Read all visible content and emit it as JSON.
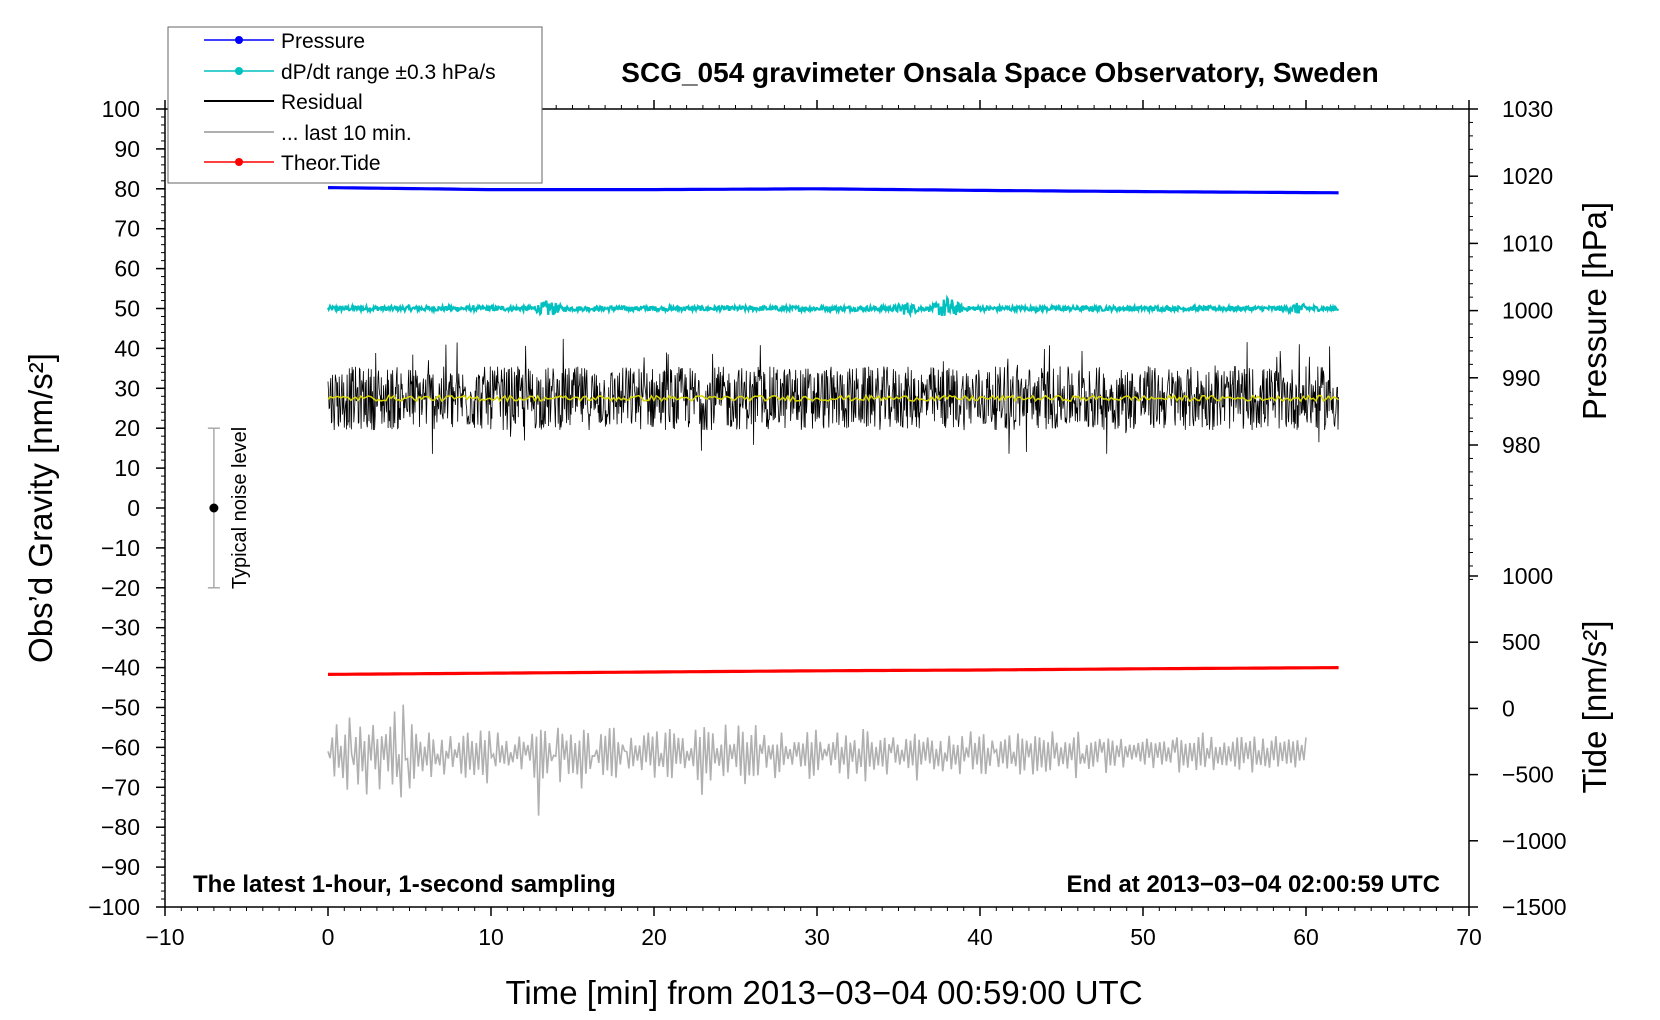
{
  "chart_data": {
    "type": "line",
    "title": "SCG_054 gravimeter Onsala Space Observatory, Sweden",
    "xlabel": "Time [min] from 2013−03−04 00:59:00 UTC",
    "ylabel_left": "Obs’d Gravity [nm/s²]",
    "ylabel_pressure": "Pressure [hPa]",
    "ylabel_tide": "Tide [nm/s²]",
    "xlim": [
      -10,
      70
    ],
    "ylim_left": [
      -100,
      100
    ],
    "ylim_pressure": [
      960,
      1030
    ],
    "ylim_tide": [
      -1500,
      1000
    ],
    "x_ticks": [
      "−10",
      "0",
      "10",
      "20",
      "30",
      "40",
      "50",
      "60",
      "70"
    ],
    "x_tick_values": [
      -10,
      0,
      10,
      20,
      30,
      40,
      50,
      60,
      70
    ],
    "y_left_ticks": [
      "100",
      "90",
      "80",
      "70",
      "60",
      "50",
      "40",
      "30",
      "20",
      "10",
      "0",
      "−10",
      "−20",
      "−30",
      "−40",
      "−50",
      "−60",
      "−70",
      "−80",
      "−90",
      "−100"
    ],
    "y_left_tick_values": [
      100,
      90,
      80,
      70,
      60,
      50,
      40,
      30,
      20,
      10,
      0,
      -10,
      -20,
      -30,
      -40,
      -50,
      -60,
      -70,
      -80,
      -90,
      -100
    ],
    "pressure_ticks": [
      "1030",
      "1020",
      "1010",
      "1000",
      "990",
      "980"
    ],
    "pressure_tick_values": [
      1030,
      1020,
      1010,
      1000,
      990,
      980
    ],
    "tide_ticks": [
      "1000",
      "500",
      "0",
      "−500",
      "−1000",
      "−1500"
    ],
    "tide_tick_values": [
      1000,
      500,
      0,
      -500,
      -1000,
      -1500
    ],
    "annotation_left": "The latest 1-hour, 1-second sampling",
    "annotation_right": "End at 2013−03−04 02:00:59 UTC",
    "noise_label": "Typical noise level",
    "noise_bar": {
      "x": -7,
      "center": 0,
      "low": -20,
      "high": 20
    },
    "legend": [
      {
        "label": "Pressure",
        "color": "#0000ff",
        "marker": true
      },
      {
        "label": "dP/dt range ±0.3 hPa/s",
        "color": "#00c0c0",
        "marker": true
      },
      {
        "label": "Residual",
        "color": "#000000",
        "marker": false
      },
      {
        "label": "... last 10 min.",
        "color": "#b0b0b0",
        "marker": false
      },
      {
        "label": "Theor.Tide",
        "color": "#ff0000",
        "marker": true
      }
    ],
    "series": [
      {
        "name": "Pressure",
        "axis": "left",
        "color": "#0000ff",
        "x": [
          0,
          10,
          20,
          30,
          40,
          50,
          62
        ],
        "values": [
          80.3,
          79.8,
          79.8,
          80.0,
          79.6,
          79.3,
          79.0
        ]
      },
      {
        "name": "dP/dt range ±0.3 hPa/s",
        "axis": "left",
        "color": "#00c0c0",
        "x": [
          0,
          62
        ],
        "values": [
          50.0,
          50.0
        ],
        "scatter": 0.6,
        "bursts": [
          {
            "x": 13.5,
            "amp": 2.2
          },
          {
            "x": 35.5,
            "amp": 1.8
          },
          {
            "x": 38.0,
            "amp": 3.0
          },
          {
            "x": 59.5,
            "amp": 1.5
          }
        ]
      },
      {
        "name": "Residual",
        "axis": "left",
        "color": "#000000",
        "x": [
          0,
          62
        ],
        "values": [
          27.5,
          27.5
        ],
        "noise_amplitude": 8,
        "noise_extremes": [
          12,
          42
        ]
      },
      {
        "name": "Residual smoothed",
        "axis": "left",
        "color": "#d8d800",
        "x": [
          0,
          62
        ],
        "values": [
          27.5,
          27.5
        ]
      },
      {
        "name": "... last 10 min.",
        "axis": "left",
        "color": "#b0b0b0",
        "x_start": 0,
        "x_end": 60,
        "values": [
          -61.0,
          -62.7,
          -57.5,
          -67.3,
          -54.2,
          -65.1,
          -59.6,
          -67.7,
          -56.8,
          -70.6,
          -52.5,
          -61.6,
          -64.4,
          -57.4,
          -69.3,
          -54.8,
          -66.0,
          -58.4,
          -71.8,
          -56.8,
          -63.3,
          -54.4,
          -65.5,
          -57.9,
          -70.5,
          -57.2,
          -63.1,
          -56.7,
          -66.0,
          -54.8,
          -69.3,
          -51.0,
          -67.4,
          -61.7,
          -72.5,
          -49.3,
          -63.1,
          -62.8,
          -70.3,
          -54.2,
          -67.9,
          -56.6,
          -64.8,
          -58.6,
          -66.0,
          -59.8,
          -64.5,
          -56.3,
          -67.4,
          -58.0,
          -64.2,
          -61.6,
          -64.5,
          -58.1,
          -66.8,
          -60.9,
          -62.8,
          -57.2,
          -64.9,
          -60.5,
          -62.6,
          -58.8,
          -66.6,
          -57.1,
          -67.6,
          -56.3,
          -65.6,
          -58.4,
          -66.9,
          -58.9,
          -65.6,
          -55.8,
          -66.9,
          -58.2,
          -69.0,
          -55.9,
          -62.5,
          -61.7,
          -64.7,
          -56.3,
          -63.8,
          -59.5,
          -64.1,
          -58.4,
          -64.5,
          -61.2,
          -63.7,
          -59.3,
          -62.9,
          -57.3,
          -65.5,
          -58.6,
          -62.0,
          -59.4,
          -63.3,
          -56.6,
          -67.6,
          -57.3,
          -77.1,
          -55.6,
          -67.8,
          -55.9,
          -66.5,
          -58.9,
          -63.4,
          -62.0,
          -62.2,
          -55.1,
          -68.7,
          -56.6,
          -63.1,
          -58.3,
          -66.7,
          -56.8,
          -66.4,
          -58.9,
          -66.8,
          -58.3,
          -70.3,
          -55.6,
          -66.6,
          -56.4,
          -65.4,
          -62.1,
          -62.2,
          -60.6,
          -63.9,
          -56.7,
          -66.9,
          -57.1,
          -65.8,
          -55.2,
          -67.2,
          -55.1,
          -67.6,
          -58.7,
          -64.3,
          -59.3,
          -60.9,
          -61.1,
          -65.3,
          -57.6,
          -64.7,
          -59.5,
          -63.3,
          -59.5,
          -65.7,
          -57.0,
          -63.7,
          -56.3,
          -64.5,
          -57.3,
          -67.6,
          -56.0,
          -64.7,
          -61.4,
          -64.9,
          -56.3,
          -67.4,
          -55.4,
          -67.7,
          -56.5,
          -64.1,
          -57.6,
          -64.1,
          -57.7,
          -65.2,
          -60.9,
          -63.3,
          -60.2,
          -64.7,
          -55.6,
          -68.2,
          -57.4,
          -71.9,
          -54.9,
          -66.5,
          -56.2,
          -68.3,
          -56.5,
          -64.0,
          -60.2,
          -64.6,
          -59.3,
          -67.2,
          -54.3,
          -66.3,
          -59.3,
          -62.9,
          -59.1,
          -64.9,
          -54.5,
          -67.1,
          -56.1,
          -69.2,
          -58.7,
          -67.0,
          -56.9,
          -67.2,
          -54.4,
          -67.0,
          -59.3,
          -61.6,
          -56.9,
          -65.1,
          -59.5,
          -63.0,
          -59.3,
          -67.7,
          -59.3,
          -66.2,
          -56.3,
          -64.4,
          -59.7,
          -62.9,
          -60.4,
          -64.3,
          -58.7,
          -62.3,
          -58.7,
          -64.8,
          -59.0,
          -64.6,
          -56.2,
          -67.9,
          -58.7,
          -67.1,
          -55.6,
          -65.7,
          -58.6,
          -63.2,
          -60.4,
          -62.2,
          -59.1,
          -64.5,
          -58.7,
          -63.1,
          -56.3,
          -66.5,
          -59.9,
          -64.3,
          -57.0,
          -67.9,
          -58.8,
          -63.6,
          -58.2,
          -66.6,
          -60.3,
          -64.9,
          -55.4,
          -68.5,
          -56.0,
          -64.8,
          -58.7,
          -65.6,
          -59.9,
          -64.5,
          -58.2,
          -64.8,
          -57.6,
          -66.8,
          -59.2,
          -61.4,
          -57.5,
          -63.8,
          -59.3,
          -64.3,
          -60.6,
          -63.5,
          -57.9,
          -65.2,
          -58.3,
          -64.5,
          -56.6,
          -68.3,
          -58.1,
          -64.3,
          -58.6,
          -63.3,
          -57.5,
          -64.0,
          -58.3,
          -65.5,
          -60.4,
          -64.7,
          -58.4,
          -66.0,
          -61.3,
          -63.5,
          -57.1,
          -65.5,
          -59.3,
          -64.3,
          -59.4,
          -66.7,
          -57.2,
          -63.5,
          -60.0,
          -62.5,
          -56.0,
          -65.5,
          -58.9,
          -64.3,
          -57.3,
          -66.6,
          -56.7,
          -66.7,
          -60.1,
          -64.6,
          -58.3,
          -61.3,
          -60.6,
          -64.9,
          -58.5,
          -64.0,
          -58.0,
          -65.3,
          -57.0,
          -64.1,
          -61.1,
          -64.7,
          -56.5,
          -66.8,
          -57.8,
          -65.8,
          -58.3,
          -62.5,
          -59.0,
          -66.8,
          -57.2,
          -65.9,
          -57.5,
          -65.0,
          -58.2,
          -66.1,
          -58.7,
          -65.7,
          -56.0,
          -62.8,
          -58.8,
          -64.7,
          -60.0,
          -64.2,
          -58.7,
          -65.3,
          -59.0,
          -63.2,
          -57.5,
          -67.7,
          -56.1,
          -64.1,
          -61.5,
          -64.0,
          -59.4,
          -65.4,
          -58.8,
          -64.8,
          -58.5,
          -63.7,
          -57.9,
          -61.3,
          -58.7,
          -66.4,
          -57.8,
          -64.5,
          -58.3,
          -64.6,
          -59.5,
          -62.4,
          -57.9,
          -65.0,
          -59.7,
          -62.5,
          -59.3,
          -63.0,
          -59.4,
          -62.5,
          -58.9,
          -63.5,
          -58.6,
          -64.3,
          -57.8,
          -62.6,
          -58.7,
          -65.2,
          -59.0,
          -62.6,
          -58.7,
          -64.3,
          -58.5,
          -63.5,
          -60.0,
          -63.8,
          -58.1,
          -61.3,
          -57.5,
          -66.3,
          -58.2,
          -64.5,
          -59.1,
          -65.1,
          -58.9,
          -63.4,
          -58.9,
          -65.7,
          -57.4,
          -64.5,
          -56.3,
          -64.9,
          -60.2,
          -62.8,
          -57.4,
          -65.7,
          -59.9,
          -64.0,
          -59.9,
          -64.4,
          -58.8,
          -64.5,
          -59.7,
          -63.5,
          -58.6,
          -64.8,
          -57.5,
          -65.6,
          -57.4,
          -63.9,
          -58.8,
          -62.9,
          -58.4,
          -66.3,
          -57.3,
          -64.3,
          -60.7,
          -64.4,
          -57.8,
          -64.7,
          -60.1,
          -65.1,
          -58.3,
          -63.2,
          -57.2,
          -64.8,
          -58.8,
          -63.4,
          -58.5,
          -64.1,
          -58.0,
          -63.9,
          -58.5,
          -65.0,
          -58.2,
          -63.3,
          -59.4,
          -63.2,
          -57.5
        ]
      },
      {
        "name": "Theor.Tide",
        "axis": "left",
        "color": "#ff0000",
        "x": [
          0,
          10,
          20,
          30,
          40,
          50,
          62
        ],
        "values": [
          -41.7,
          -41.4,
          -41.1,
          -40.8,
          -40.6,
          -40.3,
          -40.0
        ]
      }
    ]
  }
}
